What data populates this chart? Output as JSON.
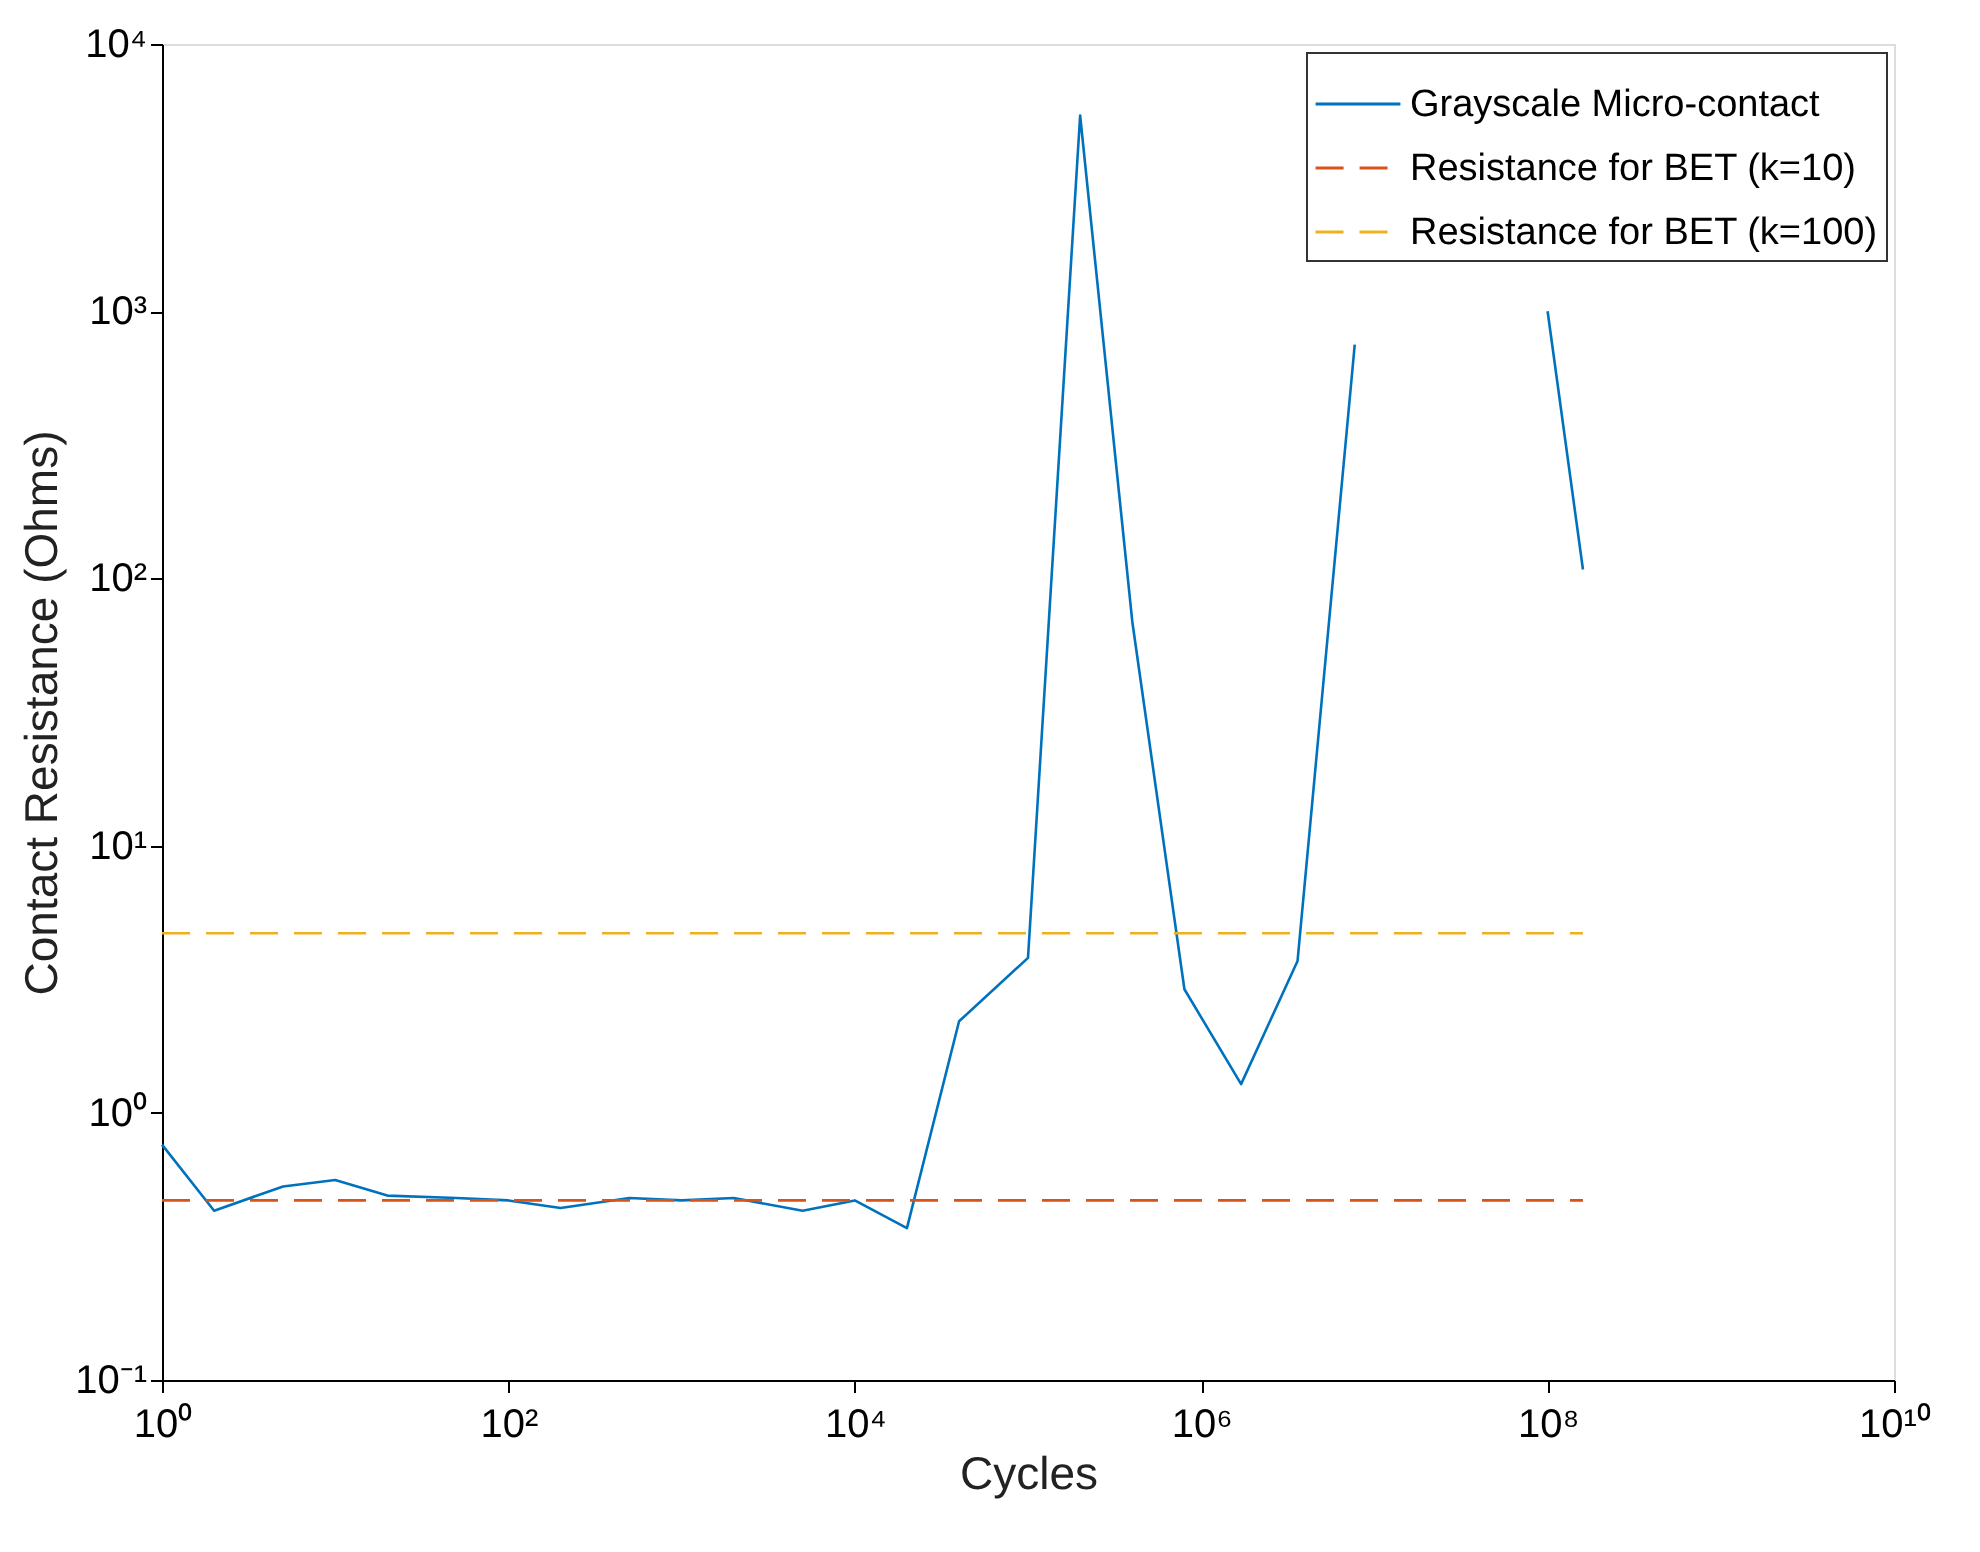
{
  "chart_data": {
    "type": "line",
    "xlabel": "Cycles",
    "ylabel": "Contact Resistance (Ohms)",
    "log": "xy",
    "grid": false,
    "legend": "top right",
    "marker": "none",
    "xlim": [
      1,
      10000000000
    ],
    "ylim": [
      0.1,
      10000
    ],
    "xticks": [
      {
        "value": 1,
        "label": "10⁰"
      },
      {
        "value": 100,
        "label": "10²"
      },
      {
        "value": 10000,
        "label": "10⁴"
      },
      {
        "value": 1000000,
        "label": "10⁶"
      },
      {
        "value": 100000000,
        "label": "10⁸"
      },
      {
        "value": 10000000000,
        "label": "10¹⁰"
      }
    ],
    "yticks": [
      {
        "value": 0.1,
        "label": "10⁻¹"
      },
      {
        "value": 1,
        "label": "10⁰"
      },
      {
        "value": 10,
        "label": "10¹"
      },
      {
        "value": 100,
        "label": "10²"
      },
      {
        "value": 1000,
        "label": "10³"
      },
      {
        "value": 10000,
        "label": "10⁴"
      }
    ],
    "series": [
      {
        "name": "Grayscale Micro-contact",
        "color": "#0072bd",
        "line_style": "solid",
        "x": [
          1,
          2,
          5,
          10,
          20,
          50,
          100,
          200,
          500,
          1000,
          2000,
          5000,
          10000,
          20000,
          40000,
          100000,
          200000,
          400000,
          800000,
          1700000,
          3600000,
          7700000,
          30000000,
          100000000,
          160000000
        ],
        "values": [
          0.76,
          0.43,
          0.53,
          0.56,
          0.49,
          0.48,
          0.47,
          0.44,
          0.48,
          0.47,
          0.48,
          0.43,
          0.47,
          0.37,
          2.2,
          3.8,
          5400,
          69,
          2.9,
          1.28,
          3.7,
          750,
          null,
          1000,
          108
        ]
      },
      {
        "name": "Resistance for BET (k=10)",
        "color": "#d95319",
        "line_style": "dashed",
        "x": [
          1,
          160000000
        ],
        "values": [
          0.47,
          0.47
        ]
      },
      {
        "name": "Resistance for BET (k=100)",
        "color": "#edb120",
        "line_style": "dashed",
        "x": [
          1,
          160000000
        ],
        "values": [
          4.7,
          4.7
        ]
      }
    ]
  }
}
